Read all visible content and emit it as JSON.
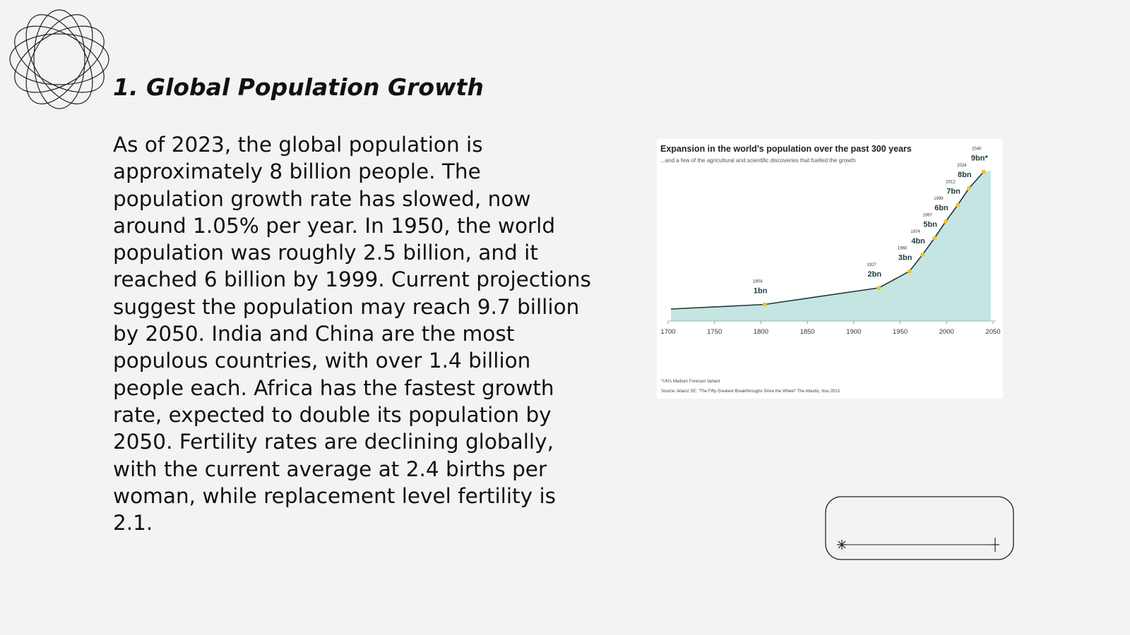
{
  "slide": {
    "heading": "1. Global Population Growth",
    "body": "As of 2023, the global population is approximately 8 billion people. The population growth rate has slowed, now around 1.05% per year. In 1950, the world population was roughly 2.5 billion, and it reached 6 billion by 1999. Current projections suggest the population may reach 9.7 billion by 2050. India and China are the most populous countries, with over 1.4 billion people each. Africa has the fastest growth rate, expected to double its population by 2050. Fertility rates are declining globally, with the current average at 2.4 births per woman, while replacement level fertility is 2.1."
  },
  "figure": {
    "title": "Expansion in the world's population over the past 300 years",
    "subtitle": "...and a few of the agricultural and scientific discoveries that fuelled the growth",
    "xticks": [
      1700,
      1750,
      1800,
      1850,
      1900,
      1950,
      2000,
      2050
    ],
    "milestones": [
      {
        "year": 1804,
        "population": 1,
        "label": "1bn"
      },
      {
        "year": 1927,
        "population": 2,
        "label": "2bn"
      },
      {
        "year": 1960,
        "population": 3,
        "label": "3bn"
      },
      {
        "year": 1974,
        "population": 4,
        "label": "4bn"
      },
      {
        "year": 1987,
        "population": 5,
        "label": "5bn"
      },
      {
        "year": 1999,
        "population": 6,
        "label": "6bn"
      },
      {
        "year": 2012,
        "population": 7,
        "label": "7bn"
      },
      {
        "year": 2024,
        "population": 8,
        "label": "8bn"
      },
      {
        "year": 2040,
        "population": 9,
        "label": "9bn*"
      }
    ],
    "footnote": "*UN's Medium Forecast Variant",
    "source": "Source: Allianz SE; \"The Fifty Greatest Breakthroughs Since the Wheel\" The Atlantic, Nov 2013"
  }
}
